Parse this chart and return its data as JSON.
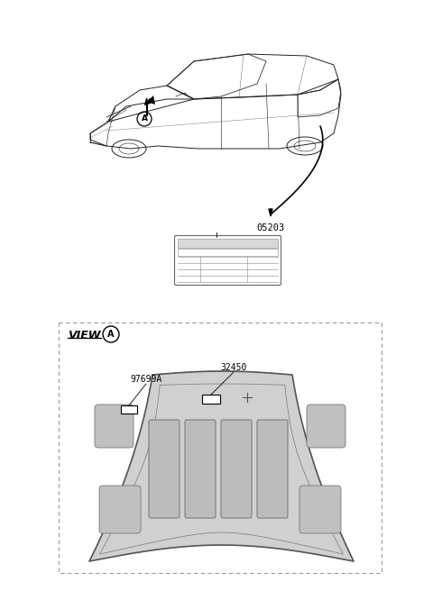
{
  "bg_color": "#ffffff",
  "line_color": "#000000",
  "gray_fill": "#cccccc",
  "dark_gray": "#999999",
  "dashed_color": "#aaaaaa",
  "part_05203": "05203",
  "part_32450": "32450",
  "part_97699A": "97699A",
  "view_label": "VIEW",
  "circle_label": "A",
  "fig_width": 4.8,
  "fig_height": 6.56,
  "dpi": 100
}
